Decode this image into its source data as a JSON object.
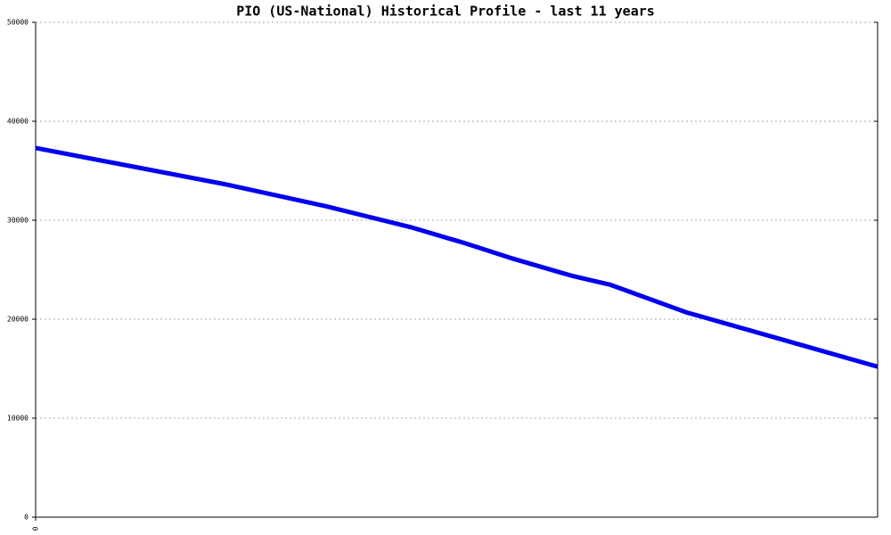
{
  "chart_data": {
    "type": "line",
    "title": "PIO (US-National) Historical Profile - last 11 years",
    "x": [
      0,
      2.5,
      3.8,
      4.9,
      5.6,
      6.2,
      7.0,
      7.5,
      8.5,
      11
    ],
    "series": [
      {
        "color": "#0000ee",
        "values": [
          37300,
          33600,
          31400,
          29300,
          27700,
          26200,
          24400,
          23500,
          20700,
          15200
        ]
      }
    ],
    "xlim": [
      0,
      11
    ],
    "xticks": [
      0
    ],
    "ylim": [
      0,
      50000
    ],
    "yticks": [
      0,
      10000,
      20000,
      30000,
      40000,
      50000
    ],
    "grid": true
  }
}
